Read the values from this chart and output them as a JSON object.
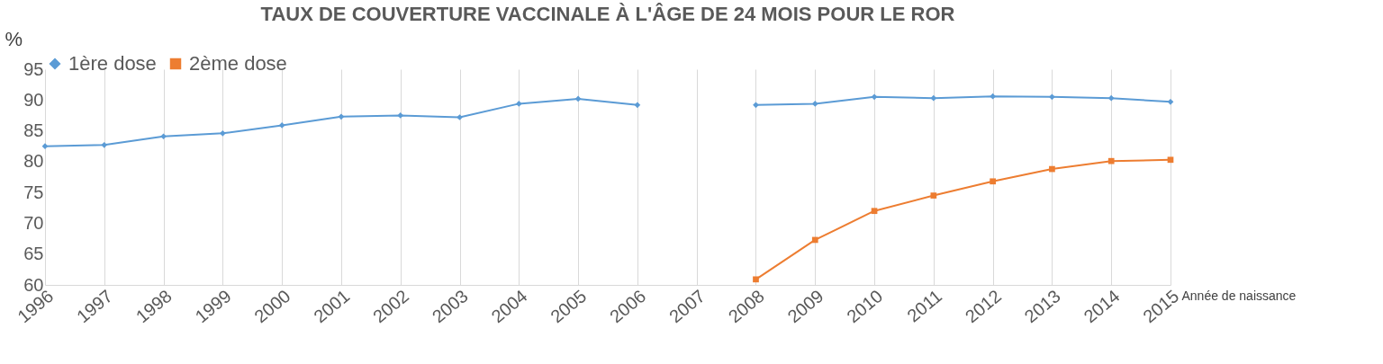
{
  "chart_data": {
    "type": "line",
    "title": "TAUX DE COUVERTURE VACCINALE À L'ÂGE DE 24 MOIS POUR LE ROR",
    "ylabel": "%",
    "xlabel": "Année de naissance",
    "categories": [
      "1996",
      "1997",
      "1998",
      "1999",
      "2000",
      "2001",
      "2002",
      "2003",
      "2004",
      "2005",
      "2006",
      "2007",
      "2008",
      "2009",
      "2010",
      "2011",
      "2012",
      "2013",
      "2014",
      "2015"
    ],
    "series": [
      {
        "name": "1ère dose",
        "color": "#5b9bd5",
        "marker": "diamond",
        "values": [
          82.5,
          82.7,
          84.1,
          84.6,
          85.9,
          87.3,
          87.5,
          87.2,
          89.4,
          90.2,
          89.2,
          null,
          89.2,
          89.4,
          90.5,
          90.3,
          90.6,
          90.5,
          90.3,
          89.7
        ]
      },
      {
        "name": "2ème dose",
        "color": "#ed7d31",
        "marker": "square",
        "values": [
          null,
          null,
          null,
          null,
          null,
          null,
          null,
          null,
          null,
          null,
          null,
          null,
          60.9,
          67.3,
          72.0,
          74.5,
          76.8,
          78.8,
          80.1,
          80.3
        ]
      }
    ],
    "ylim": [
      60,
      95
    ],
    "yticks": [
      60,
      65,
      70,
      75,
      80,
      85,
      90,
      95
    ],
    "grid": "x",
    "legend": "top",
    "line_style": "solid"
  }
}
